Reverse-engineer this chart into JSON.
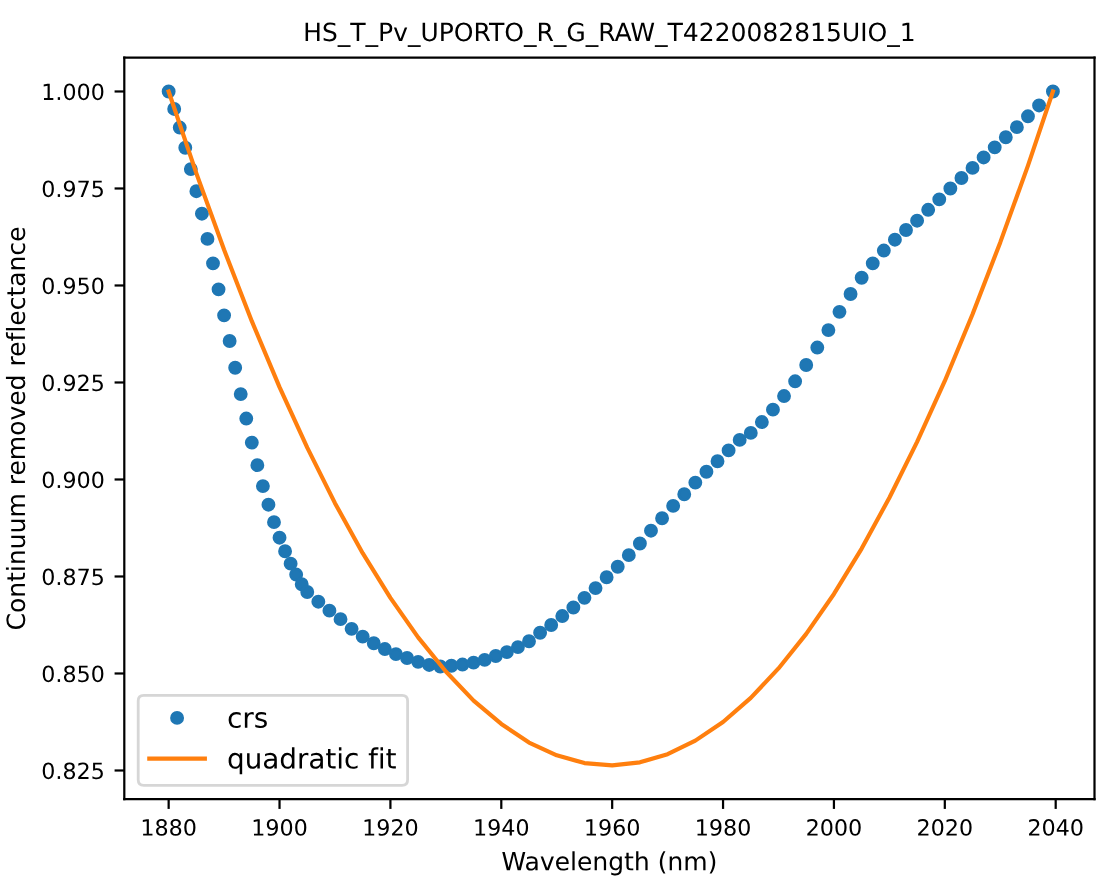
{
  "chart_data": {
    "type": "scatter",
    "title": "HS_T_Pv_UPORTO_R_G_RAW_T4220082815UIO_1",
    "xlabel": "Wavelength (nm)",
    "ylabel": "Continuum removed reflectance",
    "series": [
      {
        "name": "crs",
        "color": "#1f77b4",
        "marker": "circle",
        "x": [
          1880,
          1881,
          1882,
          1883,
          1884,
          1885,
          1886,
          1887,
          1888,
          1889,
          1890,
          1891,
          1892,
          1893,
          1894,
          1895,
          1896,
          1897,
          1898,
          1899,
          1900,
          1901,
          1902,
          1903,
          1904,
          1905,
          1907,
          1909,
          1911,
          1913,
          1915,
          1917,
          1919,
          1921,
          1923,
          1925,
          1927,
          1929,
          1931,
          1933,
          1935,
          1937,
          1939,
          1941,
          1943,
          1945,
          1947,
          1949,
          1951,
          1953,
          1955,
          1957,
          1959,
          1961,
          1963,
          1965,
          1967,
          1969,
          1971,
          1973,
          1975,
          1977,
          1979,
          1981,
          1983,
          1985,
          1987,
          1989,
          1991,
          1993,
          1995,
          1997,
          1999,
          2001,
          2003,
          2005,
          2007,
          2009,
          2011,
          2013,
          2015,
          2017,
          2019,
          2021,
          2023,
          2025,
          2027,
          2029,
          2031,
          2033,
          2035,
          2037,
          2039.5
        ],
        "values": [
          1.0,
          0.9955,
          0.9907,
          0.9855,
          0.98,
          0.9743,
          0.9685,
          0.962,
          0.9557,
          0.949,
          0.9423,
          0.9357,
          0.9288,
          0.922,
          0.9157,
          0.9095,
          0.9037,
          0.8983,
          0.8935,
          0.889,
          0.885,
          0.8815,
          0.8783,
          0.8755,
          0.873,
          0.871,
          0.8685,
          0.8662,
          0.864,
          0.8615,
          0.8595,
          0.8578,
          0.8563,
          0.855,
          0.854,
          0.853,
          0.8522,
          0.8518,
          0.852,
          0.8523,
          0.8528,
          0.8535,
          0.8545,
          0.8555,
          0.8568,
          0.8583,
          0.8605,
          0.8625,
          0.8648,
          0.867,
          0.8695,
          0.872,
          0.8748,
          0.8775,
          0.8805,
          0.8835,
          0.8868,
          0.89,
          0.8932,
          0.8962,
          0.8992,
          0.902,
          0.9047,
          0.9075,
          0.9102,
          0.912,
          0.9148,
          0.918,
          0.9215,
          0.9253,
          0.9295,
          0.934,
          0.9385,
          0.9432,
          0.9478,
          0.952,
          0.9557,
          0.959,
          0.9618,
          0.9643,
          0.9667,
          0.9695,
          0.9722,
          0.975,
          0.9777,
          0.9803,
          0.983,
          0.9856,
          0.9882,
          0.9908,
          0.9936,
          0.9964,
          1.0
        ]
      },
      {
        "name": "quadratic fit",
        "type": "line",
        "color": "#ff7f0e",
        "marker": "none",
        "line_style": "solid",
        "x": [
          1880,
          1885,
          1890,
          1895,
          1900,
          1905,
          1910,
          1915,
          1920,
          1925,
          1930,
          1935,
          1940,
          1945,
          1950,
          1955,
          1960,
          1965,
          1970,
          1975,
          1980,
          1985,
          1990,
          1995,
          2000,
          2005,
          2010,
          2015,
          2020,
          2025,
          2030,
          2035,
          2039.5
        ],
        "values": [
          1.0,
          0.9789,
          0.9592,
          0.9408,
          0.9238,
          0.9082,
          0.8939,
          0.881,
          0.8695,
          0.8593,
          0.8505,
          0.843,
          0.837,
          0.8322,
          0.8289,
          0.8269,
          0.8263,
          0.8271,
          0.8292,
          0.8327,
          0.8375,
          0.8437,
          0.8513,
          0.8602,
          0.8705,
          0.8822,
          0.8953,
          0.9097,
          0.9254,
          0.9426,
          0.9611,
          0.9809,
          1.0
        ]
      }
    ],
    "xlim": [
      1872,
      2047
    ],
    "ylim": [
      0.8176,
      1.0087
    ],
    "xticks": [
      1880,
      1900,
      1920,
      1940,
      1960,
      1980,
      2000,
      2020,
      2040
    ],
    "yticks": [
      {
        "value": 0.825,
        "label": "0.825"
      },
      {
        "value": 0.85,
        "label": "0.850"
      },
      {
        "value": 0.875,
        "label": "0.875"
      },
      {
        "value": 0.9,
        "label": "0.900"
      },
      {
        "value": 0.925,
        "label": "0.925"
      },
      {
        "value": 0.95,
        "label": "0.950"
      },
      {
        "value": 0.975,
        "label": "0.975"
      },
      {
        "value": 1.0,
        "label": "1.000"
      }
    ],
    "grid": false,
    "legend": "bottom left"
  }
}
